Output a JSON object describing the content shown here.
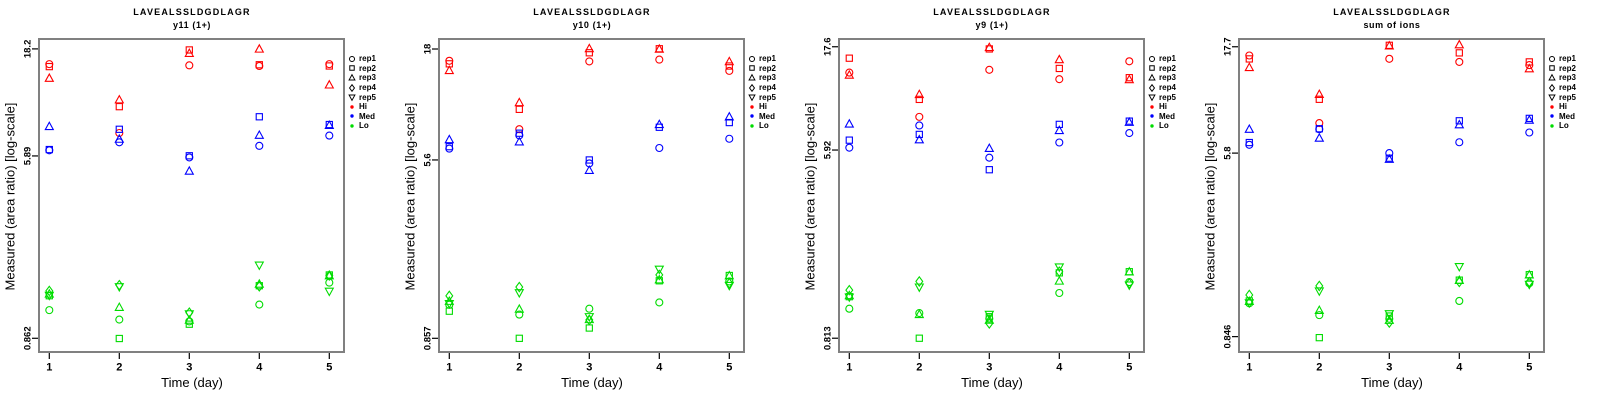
{
  "colors": {
    "hi": "#FF0000",
    "med": "#0000FF",
    "lo": "#00DC00",
    "box_border": "#808080",
    "tick": "#000000",
    "text": "#000000"
  },
  "figure": {
    "legend": {
      "reps": [
        {
          "label": "rep1",
          "marker": "circle"
        },
        {
          "label": "rep2",
          "marker": "square"
        },
        {
          "label": "rep3",
          "marker": "triangle"
        },
        {
          "label": "rep4",
          "marker": "diamond"
        },
        {
          "label": "rep5",
          "marker": "triangle-down"
        }
      ],
      "groups": [
        {
          "label": "Hi",
          "color": "#FF0000"
        },
        {
          "label": "Med",
          "color": "#0000FF"
        },
        {
          "label": "Lo",
          "color": "#00DC00"
        }
      ]
    }
  },
  "chart_data": [
    {
      "type": "scatter",
      "title": "LAVEALSSLDGDLAGR",
      "subtitle": "y11 (1+)",
      "xlabel": "Time (day)",
      "ylabel": "Measured (area ratio) [log-scale]",
      "y_scale": "log10",
      "x": [
        1,
        2,
        3,
        4,
        5
      ],
      "x_ticks": [
        "1",
        "2",
        "3",
        "4",
        "5"
      ],
      "ylim": [
        0.746,
        20.2
      ],
      "y_ticks": [
        {
          "value": 18.2,
          "label": "18.2"
        },
        {
          "value": 5.89,
          "label": "5.89"
        },
        {
          "value": 0.862,
          "label": "0.862"
        }
      ],
      "series": [
        {
          "group": "Hi",
          "rep": "rep1",
          "marker": "circle",
          "values": [
            15.5,
            7.5,
            15.3,
            15.2,
            15.5
          ]
        },
        {
          "group": "Hi",
          "rep": "rep2",
          "marker": "square",
          "values": [
            15.1,
            9.9,
            18.0,
            15.4,
            15.2
          ]
        },
        {
          "group": "Hi",
          "rep": "rep3",
          "marker": "triangle",
          "values": [
            13.3,
            10.6,
            17.3,
            18.1,
            12.4
          ]
        },
        {
          "group": "Med",
          "rep": "rep1",
          "marker": "circle",
          "values": [
            6.25,
            6.8,
            5.8,
            6.55,
            7.3
          ]
        },
        {
          "group": "Med",
          "rep": "rep2",
          "marker": "square",
          "values": [
            6.3,
            7.8,
            5.9,
            8.9,
            8.2
          ]
        },
        {
          "group": "Med",
          "rep": "rep3",
          "marker": "triangle",
          "values": [
            8.0,
            7.0,
            5.0,
            7.3,
            8.1
          ]
        },
        {
          "group": "Lo",
          "rep": "rep1",
          "marker": "circle",
          "values": [
            1.16,
            1.05,
            1.03,
            1.23,
            1.55
          ]
        },
        {
          "group": "Lo",
          "rep": "rep2",
          "marker": "square",
          "values": [
            1.35,
            0.86,
            1.0,
            1.5,
            1.68
          ]
        },
        {
          "group": "Lo",
          "rep": "rep3",
          "marker": "triangle",
          "values": [
            1.37,
            1.19,
            1.04,
            1.52,
            1.66
          ]
        },
        {
          "group": "Lo",
          "rep": "rep4",
          "marker": "diamond",
          "values": [
            1.42,
            1.51,
            1.13,
            1.49,
            1.67
          ]
        },
        {
          "group": "Lo",
          "rep": "rep5",
          "marker": "triangle-down",
          "values": [
            1.36,
            1.49,
            1.12,
            1.87,
            1.42
          ]
        }
      ]
    },
    {
      "type": "scatter",
      "title": "LAVEALSSLDGDLAGR",
      "subtitle": "y10 (1+)",
      "xlabel": "Time (day)",
      "ylabel": "Measured (area ratio) [log-scale]",
      "y_scale": "log10",
      "x": [
        1,
        2,
        3,
        4,
        5
      ],
      "x_ticks": [
        "1",
        "2",
        "3",
        "4",
        "5"
      ],
      "ylim": [
        0.742,
        20.0
      ],
      "y_ticks": [
        {
          "value": 18,
          "label": "18"
        },
        {
          "value": 5.6,
          "label": "5.6"
        },
        {
          "value": 0.857,
          "label": "0.857"
        }
      ],
      "series": [
        {
          "group": "Hi",
          "rep": "rep1",
          "marker": "circle",
          "values": [
            15.9,
            7.74,
            15.8,
            16.1,
            14.3
          ]
        },
        {
          "group": "Hi",
          "rep": "rep2",
          "marker": "square",
          "values": [
            15.4,
            9.54,
            17.3,
            18.05,
            15.05
          ]
        },
        {
          "group": "Hi",
          "rep": "rep3",
          "marker": "triangle",
          "values": [
            14.3,
            10.2,
            18.0,
            17.9,
            15.7
          ]
        },
        {
          "group": "Med",
          "rep": "rep1",
          "marker": "circle",
          "values": [
            6.31,
            7.25,
            5.4,
            6.35,
            7.0
          ]
        },
        {
          "group": "Med",
          "rep": "rep2",
          "marker": "square",
          "values": [
            6.44,
            7.42,
            5.6,
            7.9,
            8.3
          ]
        },
        {
          "group": "Med",
          "rep": "rep3",
          "marker": "triangle",
          "values": [
            6.91,
            6.75,
            5.0,
            8.1,
            8.78
          ]
        },
        {
          "group": "Lo",
          "rep": "rep1",
          "marker": "circle",
          "values": [
            1.22,
            1.1,
            1.17,
            1.25,
            1.56
          ]
        },
        {
          "group": "Lo",
          "rep": "rep2",
          "marker": "square",
          "values": [
            1.14,
            0.857,
            0.955,
            1.57,
            1.66
          ]
        },
        {
          "group": "Lo",
          "rep": "rep3",
          "marker": "triangle",
          "values": [
            1.26,
            1.16,
            1.04,
            1.58,
            1.65
          ]
        },
        {
          "group": "Lo",
          "rep": "rep4",
          "marker": "diamond",
          "values": [
            1.34,
            1.47,
            1.04,
            1.67,
            1.53
          ]
        },
        {
          "group": "Lo",
          "rep": "rep5",
          "marker": "triangle-down",
          "values": [
            1.24,
            1.39,
            1.08,
            1.78,
            1.5
          ]
        }
      ]
    },
    {
      "type": "scatter",
      "title": "LAVEALSSLDGDLAGR",
      "subtitle": "y9 (1+)",
      "xlabel": "Time (day)",
      "ylabel": "Measured (area ratio) [log-scale]",
      "y_scale": "log10",
      "x": [
        1,
        2,
        3,
        4,
        5
      ],
      "x_ticks": [
        "1",
        "2",
        "3",
        "4",
        "5"
      ],
      "ylim": [
        0.703,
        19.1
      ],
      "y_ticks": [
        {
          "value": 17.6,
          "label": "17.6"
        },
        {
          "value": 5.92,
          "label": "5.92"
        },
        {
          "value": 0.813,
          "label": "0.813"
        }
      ],
      "series": [
        {
          "group": "Hi",
          "rep": "rep1",
          "marker": "circle",
          "values": [
            13.4,
            8.4,
            13.8,
            12.5,
            15.1
          ]
        },
        {
          "group": "Hi",
          "rep": "rep2",
          "marker": "square",
          "values": [
            15.6,
            10.1,
            17.2,
            14.0,
            12.7
          ]
        },
        {
          "group": "Hi",
          "rep": "rep3",
          "marker": "triangle",
          "values": [
            13.0,
            10.6,
            17.4,
            15.3,
            12.4
          ]
        },
        {
          "group": "Med",
          "rep": "rep1",
          "marker": "circle",
          "values": [
            6.07,
            7.67,
            5.46,
            6.41,
            7.08
          ]
        },
        {
          "group": "Med",
          "rep": "rep2",
          "marker": "square",
          "values": [
            6.57,
            6.98,
            4.81,
            7.76,
            8.03
          ]
        },
        {
          "group": "Med",
          "rep": "rep3",
          "marker": "triangle",
          "values": [
            7.76,
            6.57,
            6.0,
            7.25,
            7.9
          ]
        },
        {
          "group": "Lo",
          "rep": "rep1",
          "marker": "circle",
          "values": [
            1.11,
            1.06,
            1.0,
            1.31,
            1.47
          ]
        },
        {
          "group": "Lo",
          "rep": "rep2",
          "marker": "square",
          "values": [
            1.26,
            0.813,
            1.02,
            1.62,
            1.64
          ]
        },
        {
          "group": "Lo",
          "rep": "rep3",
          "marker": "triangle",
          "values": [
            1.27,
            1.04,
            0.98,
            1.48,
            1.63
          ]
        },
        {
          "group": "Lo",
          "rep": "rep4",
          "marker": "diamond",
          "values": [
            1.35,
            1.48,
            0.95,
            1.64,
            1.45
          ]
        },
        {
          "group": "Lo",
          "rep": "rep5",
          "marker": "triangle-down",
          "values": [
            1.26,
            1.4,
            1.05,
            1.73,
            1.43
          ]
        }
      ]
    },
    {
      "type": "scatter",
      "title": "LAVEALSSLDGDLAGR",
      "subtitle": "sum of ions",
      "xlabel": "Time (day)",
      "ylabel": "Measured (area ratio) [log-scale]",
      "y_scale": "log10",
      "x": [
        1,
        2,
        3,
        4,
        5
      ],
      "x_ticks": [
        "1",
        "2",
        "3",
        "4",
        "5"
      ],
      "ylim": [
        0.72,
        19.2
      ],
      "y_ticks": [
        {
          "value": 17.7,
          "label": "17.7"
        },
        {
          "value": 5.8,
          "label": "5.8"
        },
        {
          "value": 0.846,
          "label": "0.846"
        }
      ],
      "series": [
        {
          "group": "Hi",
          "rep": "rep1",
          "marker": "circle",
          "values": [
            16.15,
            7.95,
            15.6,
            15.1,
            14.6
          ]
        },
        {
          "group": "Hi",
          "rep": "rep2",
          "marker": "square",
          "values": [
            15.58,
            10.2,
            17.97,
            16.6,
            15.1
          ]
        },
        {
          "group": "Hi",
          "rep": "rep3",
          "marker": "triangle",
          "values": [
            14.18,
            10.7,
            17.8,
            18.0,
            14.0
          ]
        },
        {
          "group": "Med",
          "rep": "rep1",
          "marker": "circle",
          "values": [
            6.33,
            7.45,
            5.8,
            6.5,
            7.2
          ]
        },
        {
          "group": "Med",
          "rep": "rep2",
          "marker": "square",
          "values": [
            6.48,
            7.49,
            5.5,
            8.14,
            8.35
          ]
        },
        {
          "group": "Med",
          "rep": "rep3",
          "marker": "triangle",
          "values": [
            7.42,
            6.76,
            5.42,
            7.78,
            8.17
          ]
        },
        {
          "group": "Lo",
          "rep": "rep1",
          "marker": "circle",
          "values": [
            1.2,
            1.06,
            1.02,
            1.23,
            1.48
          ]
        },
        {
          "group": "Lo",
          "rep": "rep2",
          "marker": "square",
          "values": [
            1.23,
            0.837,
            1.05,
            1.53,
            1.62
          ]
        },
        {
          "group": "Lo",
          "rep": "rep3",
          "marker": "triangle",
          "values": [
            1.22,
            1.11,
            1.0,
            1.52,
            1.61
          ]
        },
        {
          "group": "Lo",
          "rep": "rep4",
          "marker": "diamond",
          "values": [
            1.31,
            1.44,
            0.98,
            1.5,
            1.5
          ]
        },
        {
          "group": "Lo",
          "rep": "rep5",
          "marker": "triangle-down",
          "values": [
            1.21,
            1.37,
            1.08,
            1.77,
            1.47
          ]
        }
      ]
    }
  ]
}
